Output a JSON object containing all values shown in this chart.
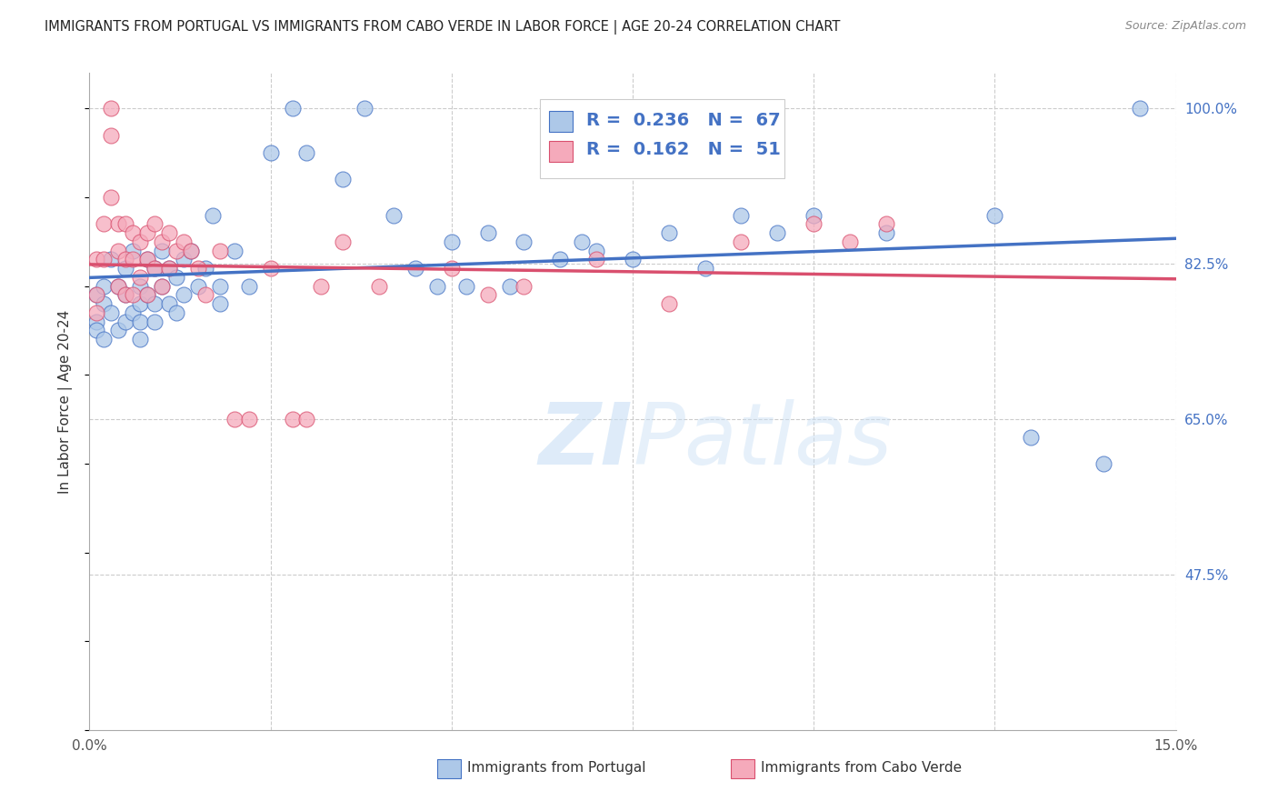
{
  "title": "IMMIGRANTS FROM PORTUGAL VS IMMIGRANTS FROM CABO VERDE IN LABOR FORCE | AGE 20-24 CORRELATION CHART",
  "source": "Source: ZipAtlas.com",
  "ylabel": "In Labor Force | Age 20-24",
  "xmin": 0.0,
  "xmax": 0.15,
  "ymin": 0.3,
  "ymax": 1.04,
  "yticks_right": [
    0.475,
    0.65,
    0.825,
    1.0
  ],
  "ytick_right_labels": [
    "47.5%",
    "65.0%",
    "82.5%",
    "100.0%"
  ],
  "xticks": [
    0.0,
    0.025,
    0.05,
    0.075,
    0.1,
    0.125,
    0.15
  ],
  "xtick_labels": [
    "0.0%",
    "",
    "",
    "",
    "",
    "",
    "15.0%"
  ],
  "legend_blue_R": "0.236",
  "legend_blue_N": "67",
  "legend_pink_R": "0.162",
  "legend_pink_N": "51",
  "legend_label_blue": "Immigrants from Portugal",
  "legend_label_pink": "Immigrants from Cabo Verde",
  "color_blue": "#adc8e8",
  "color_pink": "#f5aabb",
  "color_line_blue": "#4472c4",
  "color_line_pink": "#d94f6e",
  "color_text_blue": "#4472c4",
  "color_axis_right": "#4472c4",
  "blue_x": [
    0.001,
    0.001,
    0.001,
    0.002,
    0.002,
    0.002,
    0.003,
    0.003,
    0.004,
    0.004,
    0.005,
    0.005,
    0.005,
    0.006,
    0.006,
    0.007,
    0.007,
    0.007,
    0.007,
    0.008,
    0.008,
    0.009,
    0.009,
    0.009,
    0.01,
    0.01,
    0.011,
    0.011,
    0.012,
    0.012,
    0.013,
    0.013,
    0.014,
    0.015,
    0.016,
    0.017,
    0.018,
    0.018,
    0.02,
    0.022,
    0.025,
    0.028,
    0.03,
    0.035,
    0.038,
    0.042,
    0.045,
    0.048,
    0.05,
    0.052,
    0.055,
    0.058,
    0.06,
    0.065,
    0.068,
    0.07,
    0.075,
    0.08,
    0.085,
    0.09,
    0.095,
    0.1,
    0.11,
    0.125,
    0.13,
    0.14,
    0.145
  ],
  "blue_y": [
    0.76,
    0.79,
    0.75,
    0.8,
    0.78,
    0.74,
    0.83,
    0.77,
    0.8,
    0.75,
    0.82,
    0.79,
    0.76,
    0.84,
    0.77,
    0.8,
    0.78,
    0.76,
    0.74,
    0.83,
    0.79,
    0.82,
    0.78,
    0.76,
    0.84,
    0.8,
    0.82,
    0.78,
    0.81,
    0.77,
    0.83,
    0.79,
    0.84,
    0.8,
    0.82,
    0.88,
    0.8,
    0.78,
    0.84,
    0.8,
    0.95,
    1.0,
    0.95,
    0.92,
    1.0,
    0.88,
    0.82,
    0.8,
    0.85,
    0.8,
    0.86,
    0.8,
    0.85,
    0.83,
    0.85,
    0.84,
    0.83,
    0.86,
    0.82,
    0.88,
    0.86,
    0.88,
    0.86,
    0.88,
    0.63,
    0.6,
    1.0
  ],
  "pink_x": [
    0.001,
    0.001,
    0.001,
    0.002,
    0.002,
    0.003,
    0.003,
    0.003,
    0.004,
    0.004,
    0.004,
    0.005,
    0.005,
    0.005,
    0.006,
    0.006,
    0.006,
    0.007,
    0.007,
    0.008,
    0.008,
    0.008,
    0.009,
    0.009,
    0.01,
    0.01,
    0.011,
    0.011,
    0.012,
    0.013,
    0.014,
    0.015,
    0.016,
    0.018,
    0.02,
    0.022,
    0.025,
    0.028,
    0.03,
    0.032,
    0.035,
    0.04,
    0.05,
    0.055,
    0.06,
    0.07,
    0.08,
    0.09,
    0.1,
    0.105,
    0.11
  ],
  "pink_y": [
    0.83,
    0.79,
    0.77,
    0.87,
    0.83,
    1.0,
    0.97,
    0.9,
    0.87,
    0.84,
    0.8,
    0.87,
    0.83,
    0.79,
    0.86,
    0.83,
    0.79,
    0.85,
    0.81,
    0.86,
    0.83,
    0.79,
    0.87,
    0.82,
    0.85,
    0.8,
    0.86,
    0.82,
    0.84,
    0.85,
    0.84,
    0.82,
    0.79,
    0.84,
    0.65,
    0.65,
    0.82,
    0.65,
    0.65,
    0.8,
    0.85,
    0.8,
    0.82,
    0.79,
    0.8,
    0.83,
    0.78,
    0.85,
    0.87,
    0.85,
    0.87
  ],
  "watermark_zi": "ZI",
  "watermark_patlas": "Patlas",
  "background_color": "#ffffff",
  "grid_color": "#cccccc",
  "title_fontsize": 10.5,
  "axis_label_fontsize": 11
}
